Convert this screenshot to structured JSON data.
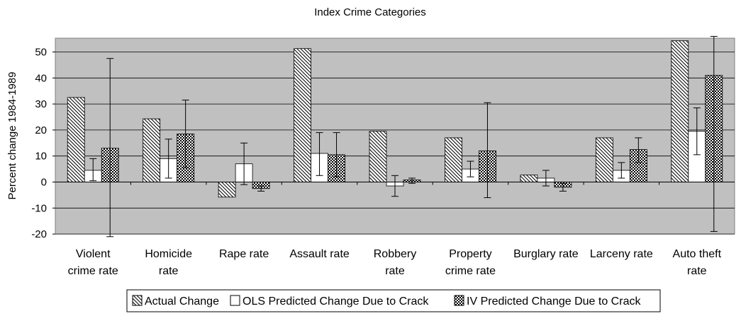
{
  "chart_data": {
    "type": "bar",
    "title": "Index Crime Categories",
    "xlabel": "",
    "ylabel": "Percent change 1984-1989",
    "ylim": [
      -20,
      55
    ],
    "yticks": [
      -20,
      -10,
      0,
      10,
      20,
      30,
      40,
      50
    ],
    "grid": true,
    "legend_position": "bottom",
    "categories": [
      [
        "Violent",
        "crime rate"
      ],
      [
        "Homicide",
        "rate"
      ],
      [
        "Rape rate"
      ],
      [
        "Assault rate"
      ],
      [
        "Robbery",
        "rate"
      ],
      [
        "Property",
        "crime rate"
      ],
      [
        "Burglary rate"
      ],
      [
        "Larceny rate"
      ],
      [
        "Auto theft",
        "rate"
      ]
    ],
    "series": [
      {
        "name": "Actual Change",
        "pattern": "hatch",
        "values": [
          32.5,
          24.3,
          -5.8,
          51.3,
          19.5,
          17.0,
          2.7,
          17.0,
          54.3
        ],
        "error_low": null,
        "error_high": null
      },
      {
        "name": "OLS Predicted Change Due to Crack",
        "pattern": "white",
        "values": [
          4.5,
          9.0,
          7.0,
          11.0,
          -1.5,
          5.0,
          1.5,
          4.5,
          19.5
        ],
        "error_low": [
          0.5,
          1.5,
          -1.0,
          2.5,
          -5.5,
          2.0,
          -1.5,
          1.5,
          10.5
        ],
        "error_high": [
          9.0,
          16.5,
          15.0,
          19.0,
          2.5,
          8.0,
          4.5,
          7.5,
          28.5
        ]
      },
      {
        "name": "IV Predicted Change Due to Crack",
        "pattern": "crosshatch",
        "values": [
          13.0,
          18.5,
          -2.5,
          10.5,
          0.8,
          12.0,
          -2.0,
          12.5,
          41.0
        ],
        "error_low": [
          -21.0,
          5.5,
          -3.5,
          2.0,
          -0.5,
          -6.0,
          -3.5,
          7.5,
          -19.0
        ],
        "error_high": [
          47.5,
          31.5,
          -1.5,
          19.0,
          1.5,
          30.5,
          -0.5,
          17.0,
          56.0
        ]
      }
    ]
  }
}
